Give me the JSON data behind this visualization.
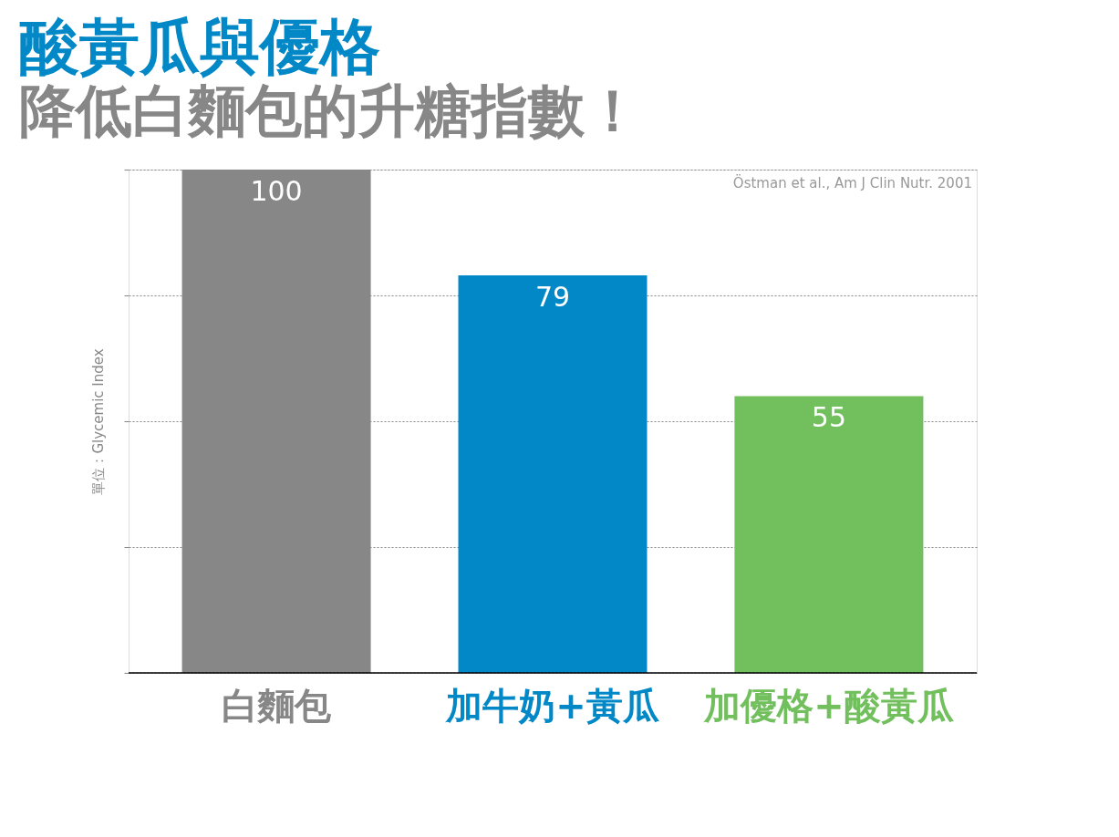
{
  "chart_data": {
    "type": "bar",
    "title": "酸黃瓜與優格",
    "subtitle": "降低白麵包的升糖指數！",
    "ylabel": "單位：Glycemic Index",
    "categories": [
      "白麵包",
      "加牛奶+黃瓜",
      "加優格+酸黃瓜"
    ],
    "values": [
      100,
      79,
      55
    ],
    "colors": [
      "#878787",
      "#0288c6",
      "#72bf5e"
    ],
    "ylim": [
      0,
      100
    ],
    "yticks": [
      {
        "value": 0,
        "label": null
      },
      {
        "value": 25,
        "label": null
      },
      {
        "value": 50,
        "label": null
      },
      {
        "value": 75,
        "label": null
      },
      {
        "value": 100,
        "label": null
      }
    ],
    "tick_labels": "x",
    "grid": "y",
    "data_labels": true,
    "annotations": [
      "Östman et al., Am J Clin Nutr. 2001"
    ]
  }
}
